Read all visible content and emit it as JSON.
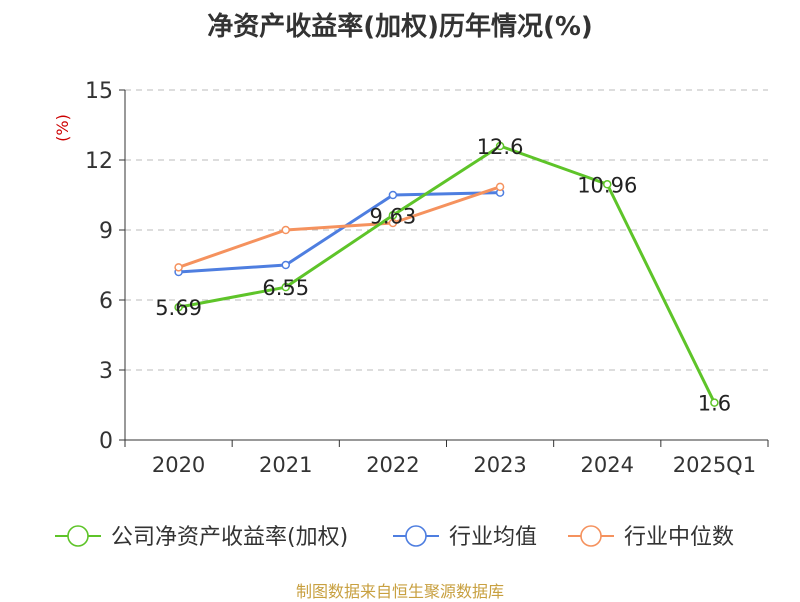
{
  "title": "净资产收益率(加权)历年情况(%)",
  "footer": "制图数据来自恒生聚源数据库",
  "colors": {
    "axis": "#333333",
    "grid": "#bbbbbb",
    "ylabel": "#cc0000",
    "footer": "#c8a040"
  },
  "chart_data": {
    "type": "line",
    "title": "净资产收益率(加权)历年情况(%)",
    "xlabel": "",
    "ylabel": "(%)",
    "categories": [
      "2020",
      "2021",
      "2022",
      "2023",
      "2024",
      "2025Q1"
    ],
    "yticks": [
      "0",
      "3",
      "6",
      "9",
      "12",
      "15"
    ],
    "ylim": [
      0,
      15
    ],
    "grid": true,
    "legend_position": "bottom",
    "series": [
      {
        "name": "公司净资产收益率(加权)",
        "color": "#5ec429",
        "values": [
          5.69,
          6.55,
          9.63,
          12.6,
          10.96,
          1.6
        ],
        "labels": [
          "5.69",
          "6.55",
          "9.63",
          "12.6",
          "10.96",
          "1.6"
        ]
      },
      {
        "name": "行业均值",
        "color": "#4e7ee0",
        "values": [
          7.2,
          7.5,
          10.5,
          10.6,
          null,
          null
        ]
      },
      {
        "name": "行业中位数",
        "color": "#f5925e",
        "values": [
          7.4,
          9.0,
          9.3,
          10.85,
          null,
          null
        ]
      }
    ]
  }
}
